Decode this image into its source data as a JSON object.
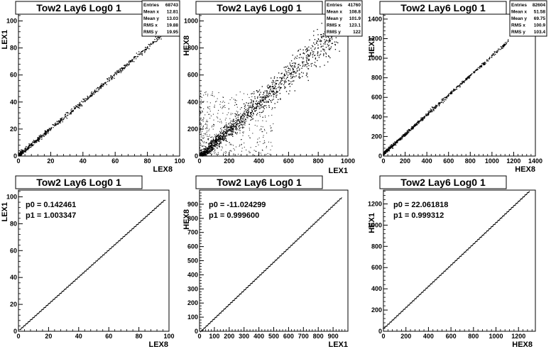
{
  "chart_data": [
    {
      "type": "scatter",
      "title": "Tow2 Lay6 Log0 1",
      "xlabel": "LEX8",
      "ylabel": "LEX1",
      "xlim": [
        0,
        100
      ],
      "ylim": [
        0,
        105
      ],
      "xticks": [
        0,
        20,
        40,
        60,
        80,
        100
      ],
      "yticks": [
        0,
        20,
        40,
        60,
        80,
        100
      ],
      "stats": [
        {
          "label": "Entries",
          "value": "68743"
        },
        {
          "label": "Mean x",
          "value": "12.81"
        },
        {
          "label": "Mean y",
          "value": "13.03"
        },
        {
          "label": "RMS x",
          "value": "19.88"
        },
        {
          "label": "RMS y",
          "value": "19.95"
        }
      ],
      "distribution": {
        "kind": "diagonal",
        "x_range": [
          0,
          98
        ],
        "slope": 1.003,
        "offset": 0.14,
        "width": 0.9,
        "outliers": 0
      }
    },
    {
      "type": "scatter",
      "title": "Tow2 Lay6 Log0 1",
      "xlabel": "LEX1",
      "ylabel": "HEX8",
      "xlim": [
        0,
        1000
      ],
      "ylim": [
        0,
        1050
      ],
      "xticks": [
        0,
        200,
        400,
        600,
        800,
        1000
      ],
      "yticks": [
        0,
        200,
        400,
        600,
        800,
        1000
      ],
      "stats": [
        {
          "label": "Entries",
          "value": "41760"
        },
        {
          "label": "Mean x",
          "value": "108.8"
        },
        {
          "label": "Mean y",
          "value": "101.9"
        },
        {
          "label": "RMS x",
          "value": "123.1"
        },
        {
          "label": "RMS y",
          "value": "122"
        }
      ],
      "distribution": {
        "kind": "diagonal-noisy",
        "x_range": [
          0,
          950
        ],
        "slope": 1.0,
        "offset": -11,
        "width": 18,
        "outliers": 1
      }
    },
    {
      "type": "scatter",
      "title": "Tow2 Lay6 Log0 1",
      "xlabel": "HEX8",
      "ylabel": "HEX1",
      "xlim": [
        0,
        1400
      ],
      "ylim": [
        0,
        1450
      ],
      "xticks": [
        0,
        200,
        400,
        600,
        800,
        1000,
        1200,
        1400
      ],
      "yticks": [
        0,
        200,
        400,
        600,
        800,
        1000,
        1200,
        1400
      ],
      "stats": [
        {
          "label": "Entries",
          "value": "82604"
        },
        {
          "label": "Mean x",
          "value": "51.58"
        },
        {
          "label": "Mean y",
          "value": "69.75"
        },
        {
          "label": "RMS x",
          "value": "100.9"
        },
        {
          "label": "RMS y",
          "value": "103.4"
        }
      ],
      "distribution": {
        "kind": "diagonal",
        "x_range": [
          0,
          1150
        ],
        "slope": 1.0,
        "offset": 22,
        "width": 9,
        "outliers": 0
      }
    },
    {
      "type": "line",
      "title": "Tow2 Lay6 Log0 1",
      "xlabel": "LEX8",
      "ylabel": "LEX1",
      "xlim": [
        0,
        100
      ],
      "ylim": [
        0,
        105
      ],
      "xticks": [
        0,
        20,
        40,
        60,
        80,
        100
      ],
      "yticks": [
        0,
        20,
        40,
        60,
        80,
        100
      ],
      "fit": {
        "p0": "p0 = 0.142461",
        "p1": "p1 = 1.003347",
        "p0_value": 0.142461,
        "p1_value": 1.003347
      },
      "profile": {
        "x_start": 1,
        "x_end": 97,
        "step": 1.5
      }
    },
    {
      "type": "line",
      "title": "Tow2 Lay6 Log0 1",
      "xlabel": "LEX1",
      "ylabel": "HEX8",
      "xlim": [
        0,
        1000
      ],
      "ylim": [
        0,
        1000
      ],
      "xticks": [
        0,
        100,
        200,
        300,
        400,
        500,
        600,
        700,
        800,
        900
      ],
      "yticks": [
        0,
        100,
        200,
        300,
        400,
        500,
        600,
        700,
        800,
        900
      ],
      "fit": {
        "p0": "p0 = -11.024299",
        "p1": "p1 = 0.999600",
        "p0_value": -11.024299,
        "p1_value": 0.9996
      },
      "profile": {
        "x_start": 5,
        "x_end": 960,
        "step": 15
      }
    },
    {
      "type": "line",
      "title": "Tow2 Lay6 Log0 1",
      "xlabel": "HEX8",
      "ylabel": "HEX1",
      "xlim": [
        0,
        1350
      ],
      "ylim": [
        0,
        1330
      ],
      "xticks": [
        0,
        200,
        400,
        600,
        800,
        1000,
        1200
      ],
      "yticks": [
        0,
        200,
        400,
        600,
        800,
        1000,
        1200
      ],
      "fit": {
        "p0": "p0 = 22.061818",
        "p1": "p1 = 0.999312",
        "p0_value": 22.061818,
        "p1_value": 0.999312
      },
      "profile": {
        "x_start": 5,
        "x_end": 1300,
        "step": 20
      }
    }
  ]
}
